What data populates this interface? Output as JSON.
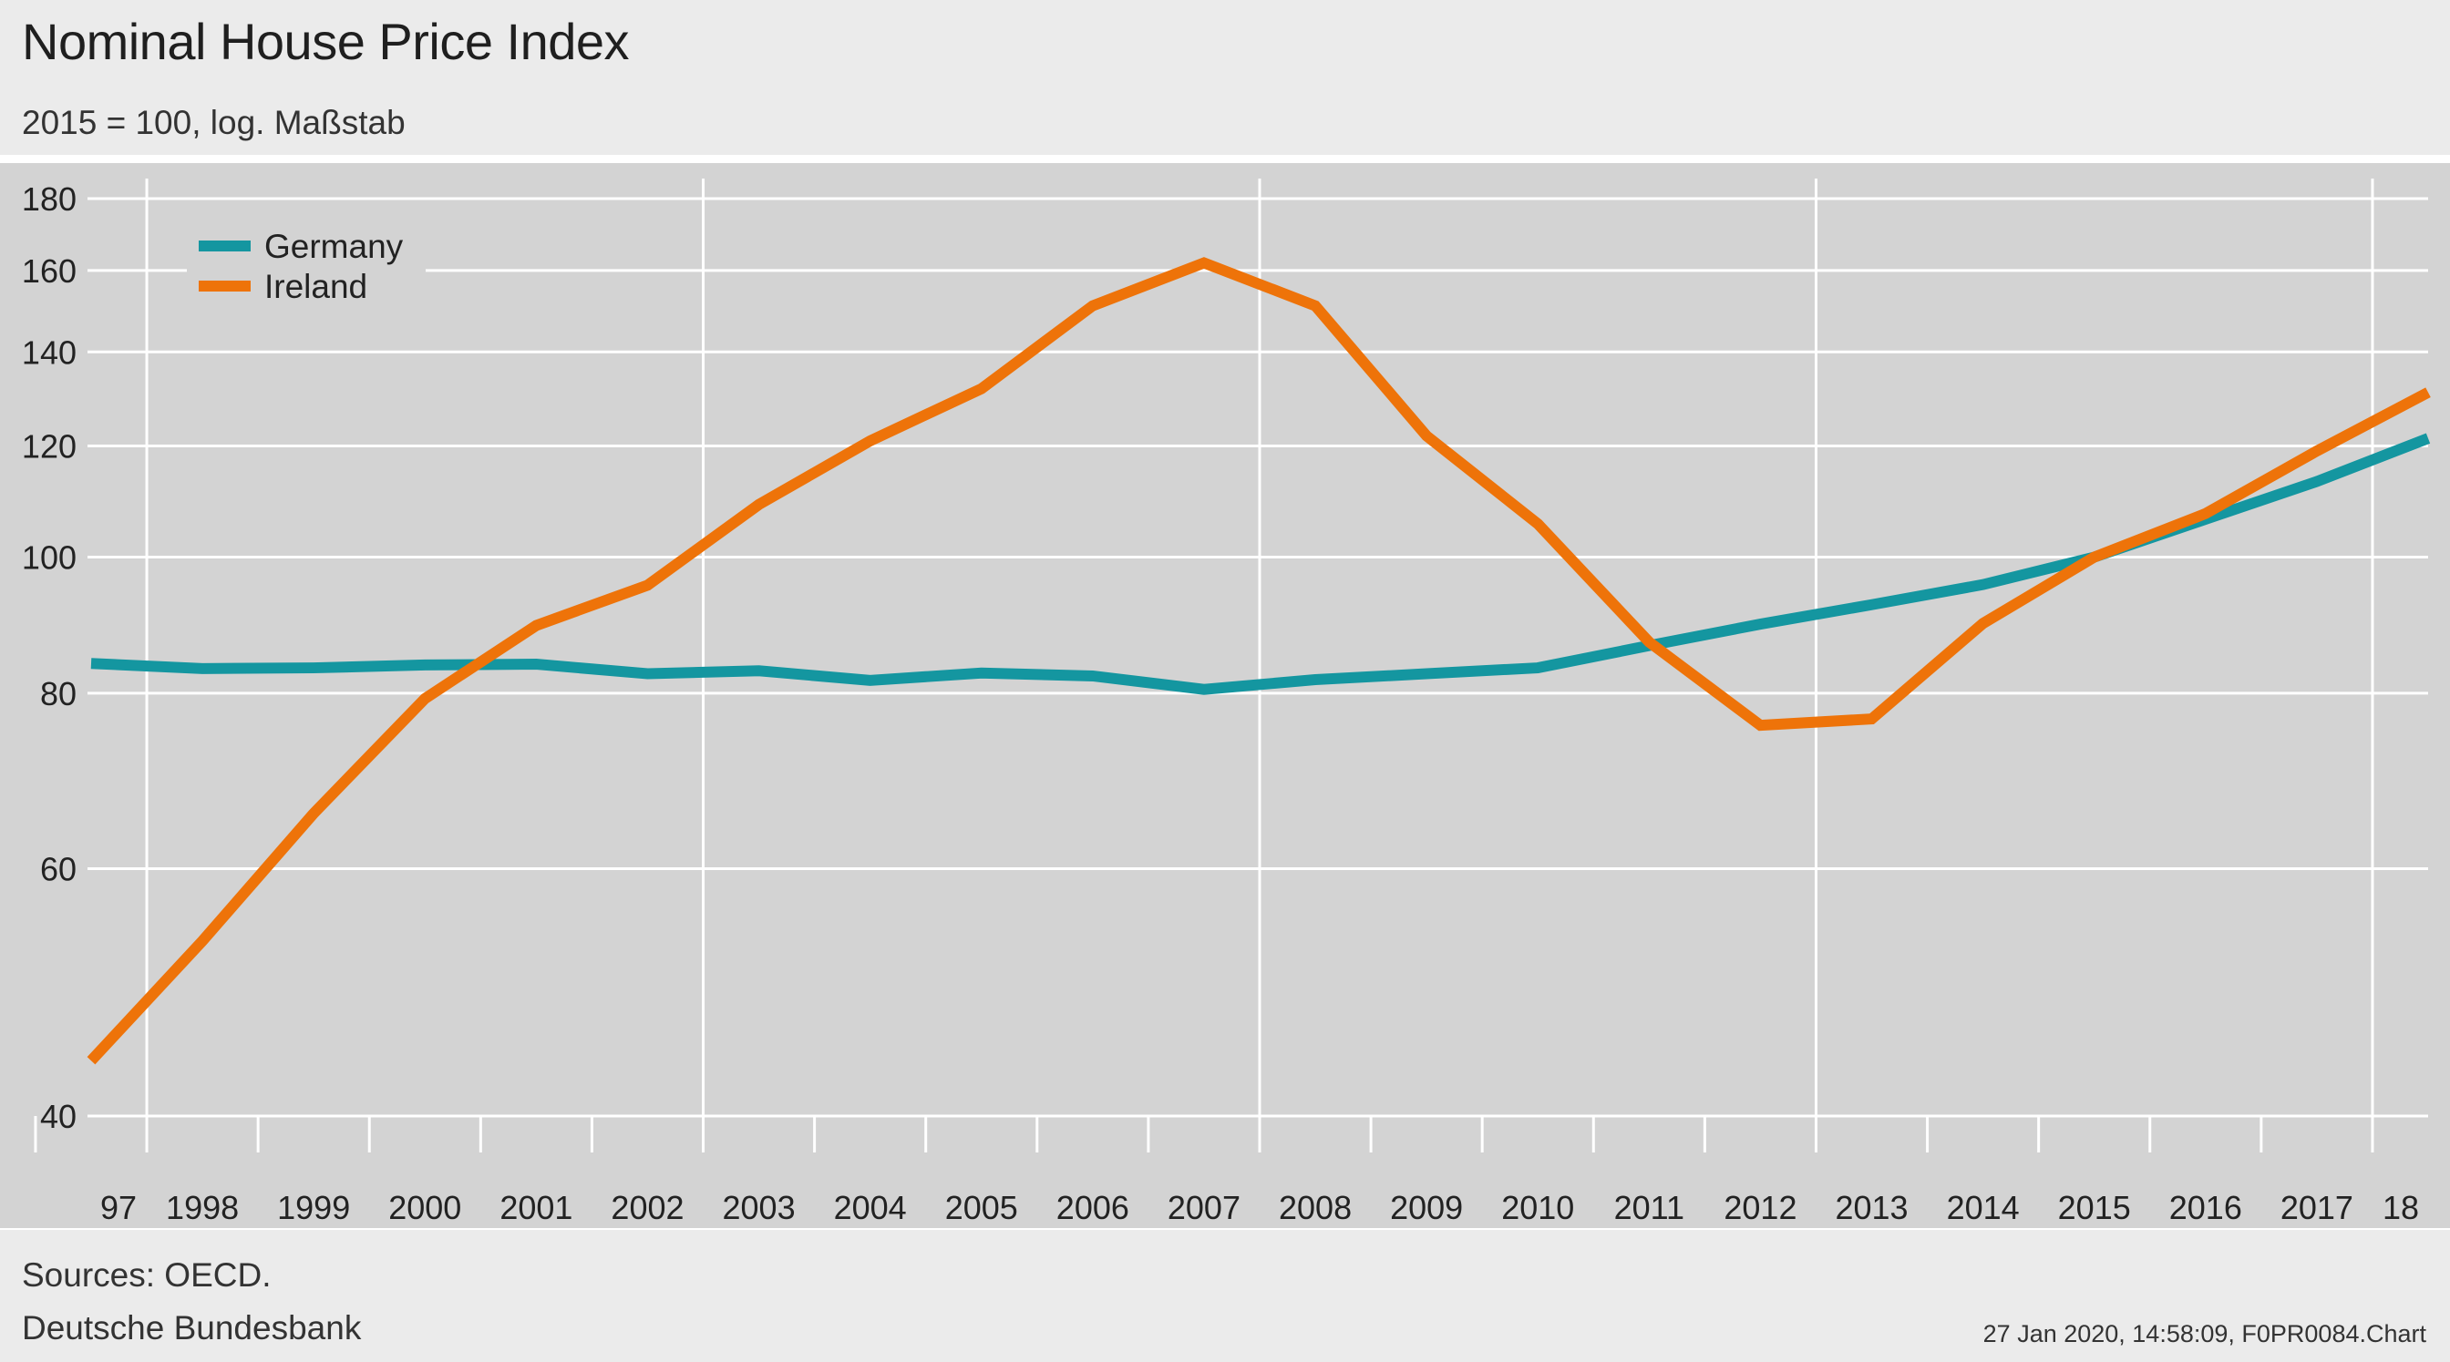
{
  "header": {
    "title": "Nominal House Price Index",
    "subtitle": "2015 = 100, log. Maßstab"
  },
  "footer": {
    "source": "Sources: OECD.",
    "publisher": "Deutsche Bundesbank",
    "stamp": "27 Jan 2020, 14:58:09, F0PR0084.Chart"
  },
  "colors": {
    "germany": "#1496a0",
    "ireland": "#ee7309",
    "plot_bg": "#d3d3d3",
    "grid": "#ffffff"
  },
  "chart_data": {
    "type": "line",
    "title": "Nominal House Price Index",
    "subtitle": "2015 = 100, log. Maßstab",
    "y_scale": "log",
    "ylim": [
      40,
      180
    ],
    "y_ticks": [
      40,
      60,
      80,
      100,
      120,
      140,
      160,
      180
    ],
    "x_tick_labels": [
      "97",
      "1998",
      "1999",
      "2000",
      "2001",
      "2002",
      "2003",
      "2004",
      "2005",
      "2006",
      "2007",
      "2008",
      "2009",
      "2010",
      "2011",
      "2012",
      "2013",
      "2014",
      "2015",
      "2016",
      "2017",
      "18"
    ],
    "x_major_gridlines": [
      1997,
      2002,
      2007,
      2012,
      2017
    ],
    "grid": true,
    "legend_position": "top-left",
    "x": [
      1997,
      1998,
      1999,
      2000,
      2001,
      2002,
      2003,
      2004,
      2005,
      2006,
      2007,
      2008,
      2009,
      2010,
      2011,
      2012,
      2013,
      2014,
      2015,
      2016,
      2017,
      2018
    ],
    "series": [
      {
        "name": "Germany",
        "color": "#1496a0",
        "values": [
          84,
          83.3,
          83.4,
          83.8,
          83.9,
          82.6,
          83,
          81.7,
          82.7,
          82.3,
          80.5,
          81.8,
          82.6,
          83.4,
          86.5,
          89.6,
          92.5,
          95.6,
          100,
          106.4,
          113.2,
          121.5
        ]
      },
      {
        "name": "Ireland",
        "color": "#ee7309",
        "values": [
          43.8,
          53.3,
          65.7,
          79.3,
          89.4,
          95.5,
          109,
          121,
          131.8,
          151,
          162,
          151,
          122,
          105.6,
          87,
          75.9,
          76.7,
          89.7,
          100,
          107.4,
          119,
          131
        ]
      }
    ]
  }
}
